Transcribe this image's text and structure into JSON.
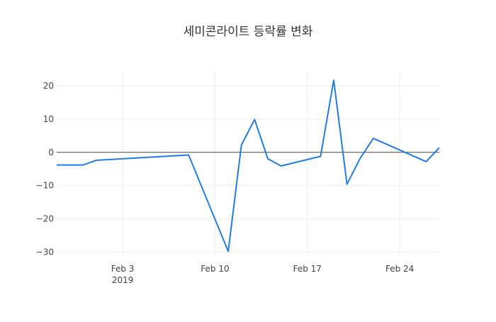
{
  "chart_data": {
    "type": "line",
    "title": "세미콘라이트 등락률 변화",
    "xlabel": "",
    "ylabel": "",
    "x_ticks": [
      {
        "date": "2019-02-03",
        "label": "Feb 3",
        "sublabel": "2019"
      },
      {
        "date": "2019-02-10",
        "label": "Feb 10",
        "sublabel": ""
      },
      {
        "date": "2019-02-17",
        "label": "Feb 17",
        "sublabel": ""
      },
      {
        "date": "2019-02-24",
        "label": "Feb 24",
        "sublabel": ""
      }
    ],
    "y_ticks": [
      20,
      10,
      0,
      -10,
      -20,
      -30
    ],
    "y_tick_labels": [
      "20",
      "10",
      "0",
      "−10",
      "−20",
      "−30"
    ],
    "xlim": [
      "2019-01-29",
      "2019-02-27"
    ],
    "ylim": [
      -31,
      24.5
    ],
    "grid": true,
    "zero_line": true,
    "colors": {
      "line": "#1f7fe0",
      "grid": "#eeeeee",
      "zero": "#444444"
    },
    "series": [
      {
        "x": [
          "2019-01-29",
          "2019-01-30",
          "2019-01-31",
          "2019-02-01",
          "2019-02-08",
          "2019-02-11",
          "2019-02-12",
          "2019-02-13",
          "2019-02-14",
          "2019-02-15",
          "2019-02-18",
          "2019-02-19",
          "2019-02-20",
          "2019-02-21",
          "2019-02-22",
          "2019-02-26",
          "2019-02-27"
        ],
        "values": [
          -3.8,
          -3.8,
          -3.8,
          -2.4,
          -0.8,
          -29.8,
          2.2,
          9.9,
          -1.9,
          -4.1,
          -1.2,
          21.7,
          -9.6,
          -1.8,
          4.2,
          -2.8,
          1.4
        ]
      }
    ]
  }
}
